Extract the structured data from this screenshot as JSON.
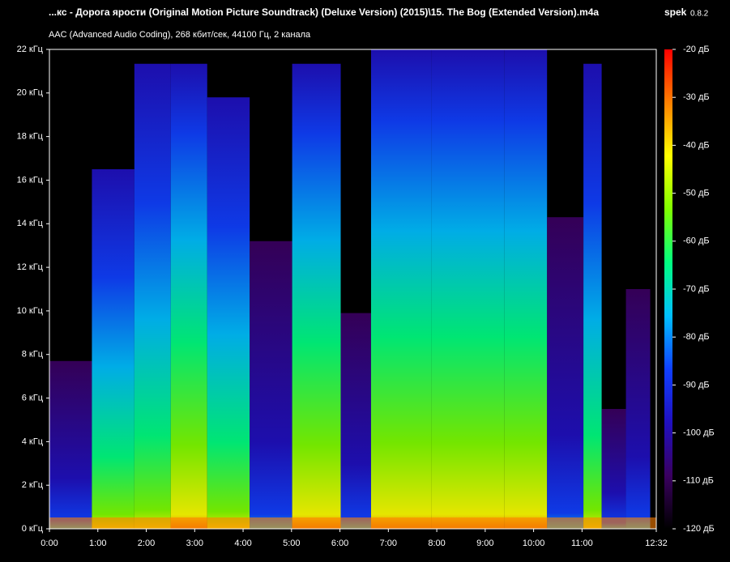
{
  "chart_data": {
    "type": "spectrogram",
    "title": "...кс - Дорога ярости (Original Motion Picture Soundtrack) (Deluxe Version) (2015)\\15. The Bog (Extended Version).m4a",
    "app_name": "spek",
    "app_version": "0.8.2",
    "subtitle": "AAC (Advanced Audio Coding), 268 кбит/сек, 44100 Гц, 2 канала",
    "xlim": [
      0,
      752
    ],
    "xticks": [
      {
        "value": 0,
        "label": "0:00"
      },
      {
        "value": 60,
        "label": "1:00"
      },
      {
        "value": 120,
        "label": "2:00"
      },
      {
        "value": 180,
        "label": "3:00"
      },
      {
        "value": 240,
        "label": "4:00"
      },
      {
        "value": 300,
        "label": "5:00"
      },
      {
        "value": 360,
        "label": "6:00"
      },
      {
        "value": 420,
        "label": "7:00"
      },
      {
        "value": 480,
        "label": "8:00"
      },
      {
        "value": 540,
        "label": "9:00"
      },
      {
        "value": 600,
        "label": "10:00"
      },
      {
        "value": 660,
        "label": "11:00"
      },
      {
        "value": 752,
        "label": "12:32"
      }
    ],
    "ylim": [
      0,
      22000
    ],
    "yticks": [
      {
        "value": 0,
        "label": "0 кГц"
      },
      {
        "value": 2000,
        "label": "2 кГц"
      },
      {
        "value": 4000,
        "label": "4 кГц"
      },
      {
        "value": 6000,
        "label": "6 кГц"
      },
      {
        "value": 8000,
        "label": "8 кГц"
      },
      {
        "value": 10000,
        "label": "10 кГц"
      },
      {
        "value": 12000,
        "label": "12 кГц"
      },
      {
        "value": 14000,
        "label": "14 кГц"
      },
      {
        "value": 16000,
        "label": "16 кГц"
      },
      {
        "value": 18000,
        "label": "18 кГц"
      },
      {
        "value": 20000,
        "label": "20 кГц"
      },
      {
        "value": 22000,
        "label": "22 кГц"
      }
    ],
    "zlim": [
      -120,
      -20
    ],
    "zticks": [
      {
        "value": -20,
        "label": "-20 дБ"
      },
      {
        "value": -30,
        "label": "-30 дБ"
      },
      {
        "value": -40,
        "label": "-40 дБ"
      },
      {
        "value": -50,
        "label": "-50 дБ"
      },
      {
        "value": -60,
        "label": "-60 дБ"
      },
      {
        "value": -70,
        "label": "-70 дБ"
      },
      {
        "value": -80,
        "label": "-80 дБ"
      },
      {
        "value": -90,
        "label": "-90 дБ"
      },
      {
        "value": -100,
        "label": "-100 дБ"
      },
      {
        "value": -110,
        "label": "-110 дБ"
      },
      {
        "value": -120,
        "label": "-120 дБ"
      }
    ],
    "colormap": [
      "#000000",
      "#3a0060",
      "#2010c0",
      "#1040ff",
      "#00c0ff",
      "#00ff80",
      "#80ff00",
      "#ffff00",
      "#ff8000",
      "#ff0000"
    ]
  }
}
